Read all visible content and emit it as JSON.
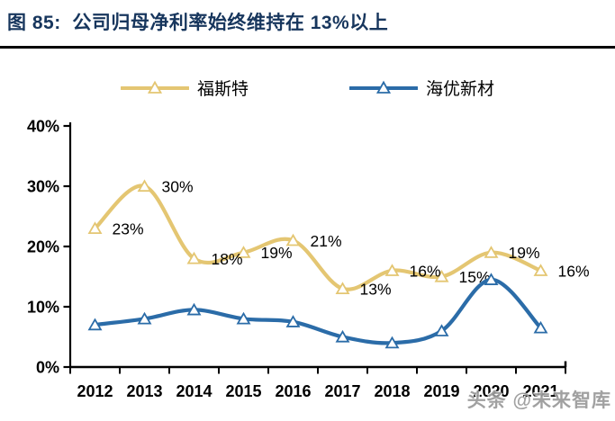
{
  "header": {
    "title": "图 85:  公司归母净利率始终维持在 13%以上",
    "title_color": "#17365D"
  },
  "legend": {
    "items": [
      {
        "label": "福斯特",
        "color": "#E4C672",
        "marker": "triangle-icon"
      },
      {
        "label": "海优新材",
        "color": "#2B6CA8",
        "marker": "triangle-icon"
      }
    ]
  },
  "chart_data": {
    "type": "line",
    "title": "图 85: 公司归母净利率始终维持在 13%以上",
    "categories": [
      "2012",
      "2013",
      "2014",
      "2015",
      "2016",
      "2017",
      "2018",
      "2019",
      "2020",
      "2021"
    ],
    "ylim": [
      0,
      40
    ],
    "ytick_labels": [
      "0%",
      "10%",
      "20%",
      "30%",
      "40%"
    ],
    "ytick_values": [
      0,
      10,
      20,
      30,
      40
    ],
    "grid": false,
    "smoothed": true,
    "legend_position": "top",
    "marker": "open-triangle",
    "series": [
      {
        "name": "福斯特",
        "color": "#E4C672",
        "values": [
          23,
          30,
          18,
          19,
          21,
          13,
          16,
          15,
          19,
          16
        ],
        "point_labels": [
          "23%",
          "30%",
          "18%",
          "19%",
          "21%",
          "13%",
          "16%",
          "15%",
          "19%",
          "16%"
        ]
      },
      {
        "name": "海优新材",
        "color": "#2B6CA8",
        "values": [
          7,
          8,
          9.5,
          8,
          7.5,
          5,
          4,
          6,
          14.5,
          6.5
        ],
        "point_labels": []
      }
    ],
    "axis_color": "#000000"
  },
  "watermark": {
    "text": "头条 @未来智库"
  }
}
